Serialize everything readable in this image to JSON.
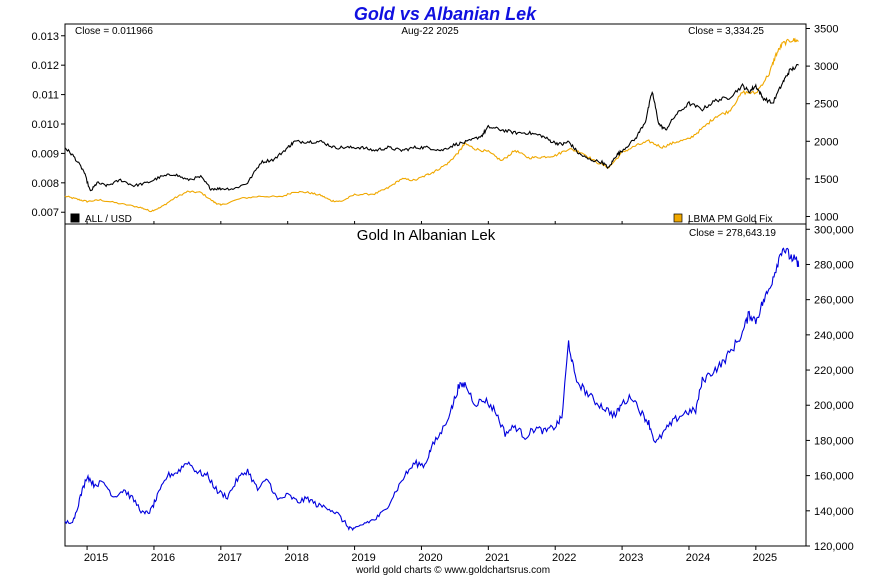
{
  "chart_data": [
    {
      "type": "line",
      "title": "Gold vs Albanian Lek",
      "date_label": "Aug-22  2025",
      "left_close": "Close = 0.011966",
      "right_close": "Close = 3,334.25",
      "y_left_ticks": [
        "0.007",
        "0.008",
        "0.009",
        "0.010",
        "0.011",
        "0.012",
        "0.013"
      ],
      "y_left_range": [
        0.0066,
        0.0134
      ],
      "y_right_ticks": [
        "1000",
        "1500",
        "2000",
        "2500",
        "3000",
        "3500"
      ],
      "y_right_range": [
        900,
        3560
      ],
      "colors": {
        "all_usd": "#000000",
        "gold": "#f0a800"
      },
      "series": [
        {
          "name": "ALL / USD",
          "axis": "left",
          "x": [
            2014.67,
            2014.8,
            2014.95,
            2015.05,
            2015.15,
            2015.3,
            2015.5,
            2015.7,
            2015.9,
            2016.1,
            2016.3,
            2016.5,
            2016.7,
            2016.85,
            2017.0,
            2017.2,
            2017.4,
            2017.6,
            2017.8,
            2018.0,
            2018.1,
            2018.3,
            2018.5,
            2018.7,
            2018.9,
            2019.1,
            2019.3,
            2019.5,
            2019.7,
            2019.9,
            2020.1,
            2020.3,
            2020.5,
            2020.7,
            2020.9,
            2021.0,
            2021.2,
            2021.4,
            2021.6,
            2021.8,
            2021.95,
            2022.1,
            2022.2,
            2022.35,
            2022.5,
            2022.7,
            2022.8,
            2022.9,
            2023.0,
            2023.2,
            2023.35,
            2023.45,
            2023.55,
            2023.65,
            2023.8,
            2024.0,
            2024.2,
            2024.4,
            2024.6,
            2024.8,
            2024.9,
            2025.0,
            2025.1,
            2025.25,
            2025.4,
            2025.5,
            2025.64
          ],
          "values": [
            0.0092,
            0.0089,
            0.0084,
            0.0077,
            0.008,
            0.0079,
            0.0081,
            0.0079,
            0.008,
            0.0082,
            0.0083,
            0.0081,
            0.0082,
            0.0078,
            0.0078,
            0.0078,
            0.008,
            0.0087,
            0.0088,
            0.0092,
            0.0094,
            0.0094,
            0.0094,
            0.0092,
            0.0092,
            0.0092,
            0.0091,
            0.0092,
            0.0091,
            0.0092,
            0.0092,
            0.0091,
            0.0093,
            0.0094,
            0.0096,
            0.0099,
            0.0098,
            0.0097,
            0.0097,
            0.0096,
            0.0094,
            0.0093,
            0.0094,
            0.009,
            0.0088,
            0.0087,
            0.0085,
            0.0089,
            0.0091,
            0.0095,
            0.0101,
            0.0111,
            0.01,
            0.0098,
            0.0103,
            0.0107,
            0.0105,
            0.0108,
            0.0109,
            0.0113,
            0.0111,
            0.0113,
            0.0109,
            0.0107,
            0.0114,
            0.0118,
            0.012
          ]
        },
        {
          "name": "LBMA PM Gold Fix",
          "axis": "right",
          "x": [
            2014.67,
            2014.85,
            2015.0,
            2015.2,
            2015.5,
            2015.8,
            2015.95,
            2016.1,
            2016.3,
            2016.5,
            2016.7,
            2016.9,
            2017.0,
            2017.3,
            2017.6,
            2017.9,
            2018.1,
            2018.3,
            2018.5,
            2018.65,
            2018.8,
            2019.0,
            2019.3,
            2019.5,
            2019.7,
            2019.9,
            2020.1,
            2020.2,
            2020.4,
            2020.55,
            2020.65,
            2020.8,
            2021.0,
            2021.2,
            2021.4,
            2021.6,
            2021.8,
            2022.0,
            2022.2,
            2022.4,
            2022.6,
            2022.8,
            2023.0,
            2023.2,
            2023.4,
            2023.6,
            2023.8,
            2024.0,
            2024.2,
            2024.4,
            2024.6,
            2024.8,
            2025.0,
            2025.2,
            2025.3,
            2025.4,
            2025.55,
            2025.64
          ],
          "values": [
            1270,
            1230,
            1200,
            1220,
            1170,
            1120,
            1070,
            1120,
            1240,
            1330,
            1320,
            1190,
            1150,
            1240,
            1270,
            1260,
            1330,
            1320,
            1280,
            1210,
            1200,
            1290,
            1300,
            1380,
            1500,
            1480,
            1560,
            1600,
            1710,
            1850,
            1970,
            1900,
            1860,
            1740,
            1880,
            1780,
            1790,
            1810,
            1900,
            1850,
            1730,
            1650,
            1850,
            1940,
            2000,
            1920,
            1990,
            2030,
            2170,
            2330,
            2400,
            2650,
            2640,
            2900,
            3150,
            3300,
            3350,
            3334
          ]
        }
      ]
    },
    {
      "type": "line",
      "title": "Gold In Albanian Lek",
      "close_label": "Close = 278,643.19",
      "source": "world gold charts © www.goldchartsrus.com",
      "y_ticks": [
        "120,000",
        "140,000",
        "160,000",
        "180,000",
        "200,000",
        "220,000",
        "240,000",
        "260,000",
        "280,000",
        "300,000"
      ],
      "y_range": [
        120000,
        303000
      ],
      "x_ticks": [
        "2015",
        "2016",
        "2017",
        "2018",
        "2019",
        "2020",
        "2021",
        "2022",
        "2023",
        "2024",
        "2025"
      ],
      "x_range": [
        2014.67,
        2025.75
      ],
      "colors": {
        "line": "#0000dd"
      },
      "series": [
        {
          "name": "Gold In Albanian Lek",
          "x": [
            2014.67,
            2014.8,
            2014.9,
            2015.0,
            2015.1,
            2015.25,
            2015.4,
            2015.55,
            2015.7,
            2015.85,
            2015.95,
            2016.05,
            2016.2,
            2016.35,
            2016.5,
            2016.65,
            2016.8,
            2016.95,
            2017.1,
            2017.25,
            2017.4,
            2017.55,
            2017.7,
            2017.85,
            2018.0,
            2018.15,
            2018.3,
            2018.45,
            2018.6,
            2018.75,
            2018.9,
            2019.0,
            2019.15,
            2019.3,
            2019.45,
            2019.6,
            2019.75,
            2019.9,
            2020.05,
            2020.15,
            2020.3,
            2020.45,
            2020.55,
            2020.65,
            2020.8,
            2020.95,
            2021.1,
            2021.25,
            2021.4,
            2021.55,
            2021.7,
            2021.85,
            2022.0,
            2022.1,
            2022.2,
            2022.3,
            2022.45,
            2022.6,
            2022.75,
            2022.9,
            2023.0,
            2023.15,
            2023.3,
            2023.4,
            2023.5,
            2023.65,
            2023.8,
            2023.95,
            2024.1,
            2024.2,
            2024.35,
            2024.5,
            2024.65,
            2024.8,
            2024.9,
            2025.0,
            2025.1,
            2025.2,
            2025.3,
            2025.4,
            2025.5,
            2025.6,
            2025.64
          ],
          "values": [
            133000,
            135000,
            148000,
            160000,
            155000,
            156000,
            148000,
            152000,
            146000,
            138000,
            140000,
            148000,
            160000,
            162000,
            168000,
            162000,
            160000,
            151000,
            148000,
            158000,
            163000,
            152000,
            158000,
            146000,
            149000,
            145000,
            147000,
            143000,
            142000,
            138000,
            131000,
            129000,
            133000,
            135000,
            140000,
            150000,
            160000,
            167000,
            166000,
            176000,
            185000,
            198000,
            210000,
            212000,
            201000,
            203000,
            197000,
            184000,
            188000,
            182000,
            187000,
            185000,
            188000,
            193000,
            236000,
            215000,
            208000,
            202000,
            198000,
            194000,
            201000,
            205000,
            195000,
            190000,
            178000,
            186000,
            192000,
            196000,
            197000,
            214000,
            219000,
            224000,
            232000,
            241000,
            252000,
            248000,
            258000,
            266000,
            278000,
            290000,
            285000,
            282000,
            278643
          ]
        }
      ]
    }
  ]
}
